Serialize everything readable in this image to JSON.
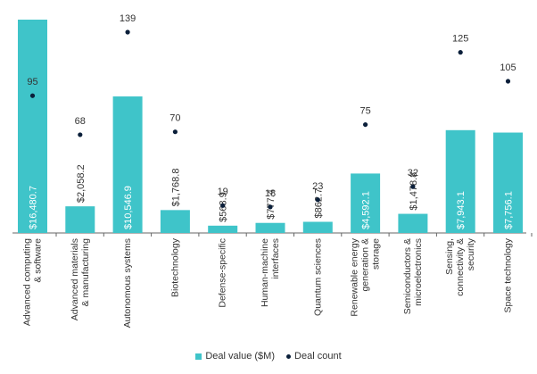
{
  "chart_data": {
    "type": "bar",
    "categories": [
      "Advanced computing & software",
      "Advanced materials & manufacturing",
      "Autonomous systems",
      "Biotechnology",
      "Defense-specific",
      "Human-machine interfaces",
      "Quantum sciences",
      "Renewable energy generation & storage",
      "Semiconductors & microelectronics",
      "Sensing, connectivity & security",
      "Space technology"
    ],
    "series": [
      {
        "name": "Deal value ($M)",
        "type": "bar",
        "values": [
          16480.7,
          2058.2,
          10546.9,
          1768.8,
          563.9,
          777.4,
          862.7,
          4592.1,
          1478.8,
          7943.1,
          7756.1
        ],
        "labels": [
          "$16,480.7",
          "$2,058.2",
          "$10,546.9",
          "$1,768.8",
          "$563.9",
          "$777.4",
          "$862.7",
          "$4,592.1",
          "$1,478.8",
          "$7,943.1",
          "$7,756.1"
        ]
      },
      {
        "name": "Deal count",
        "type": "scatter",
        "values": [
          95,
          68,
          139,
          70,
          19,
          18,
          23,
          75,
          32,
          125,
          105
        ],
        "labels": [
          "95",
          "68",
          "139",
          "70",
          "19",
          "18",
          "23",
          "75",
          "32",
          "125",
          "105"
        ]
      }
    ],
    "colors": {
      "bar": "#3fc4c9",
      "dot": "#0b1f3a",
      "text": "#333333",
      "axis": "#666666"
    },
    "legend_placement": "bottom",
    "grid": false
  }
}
